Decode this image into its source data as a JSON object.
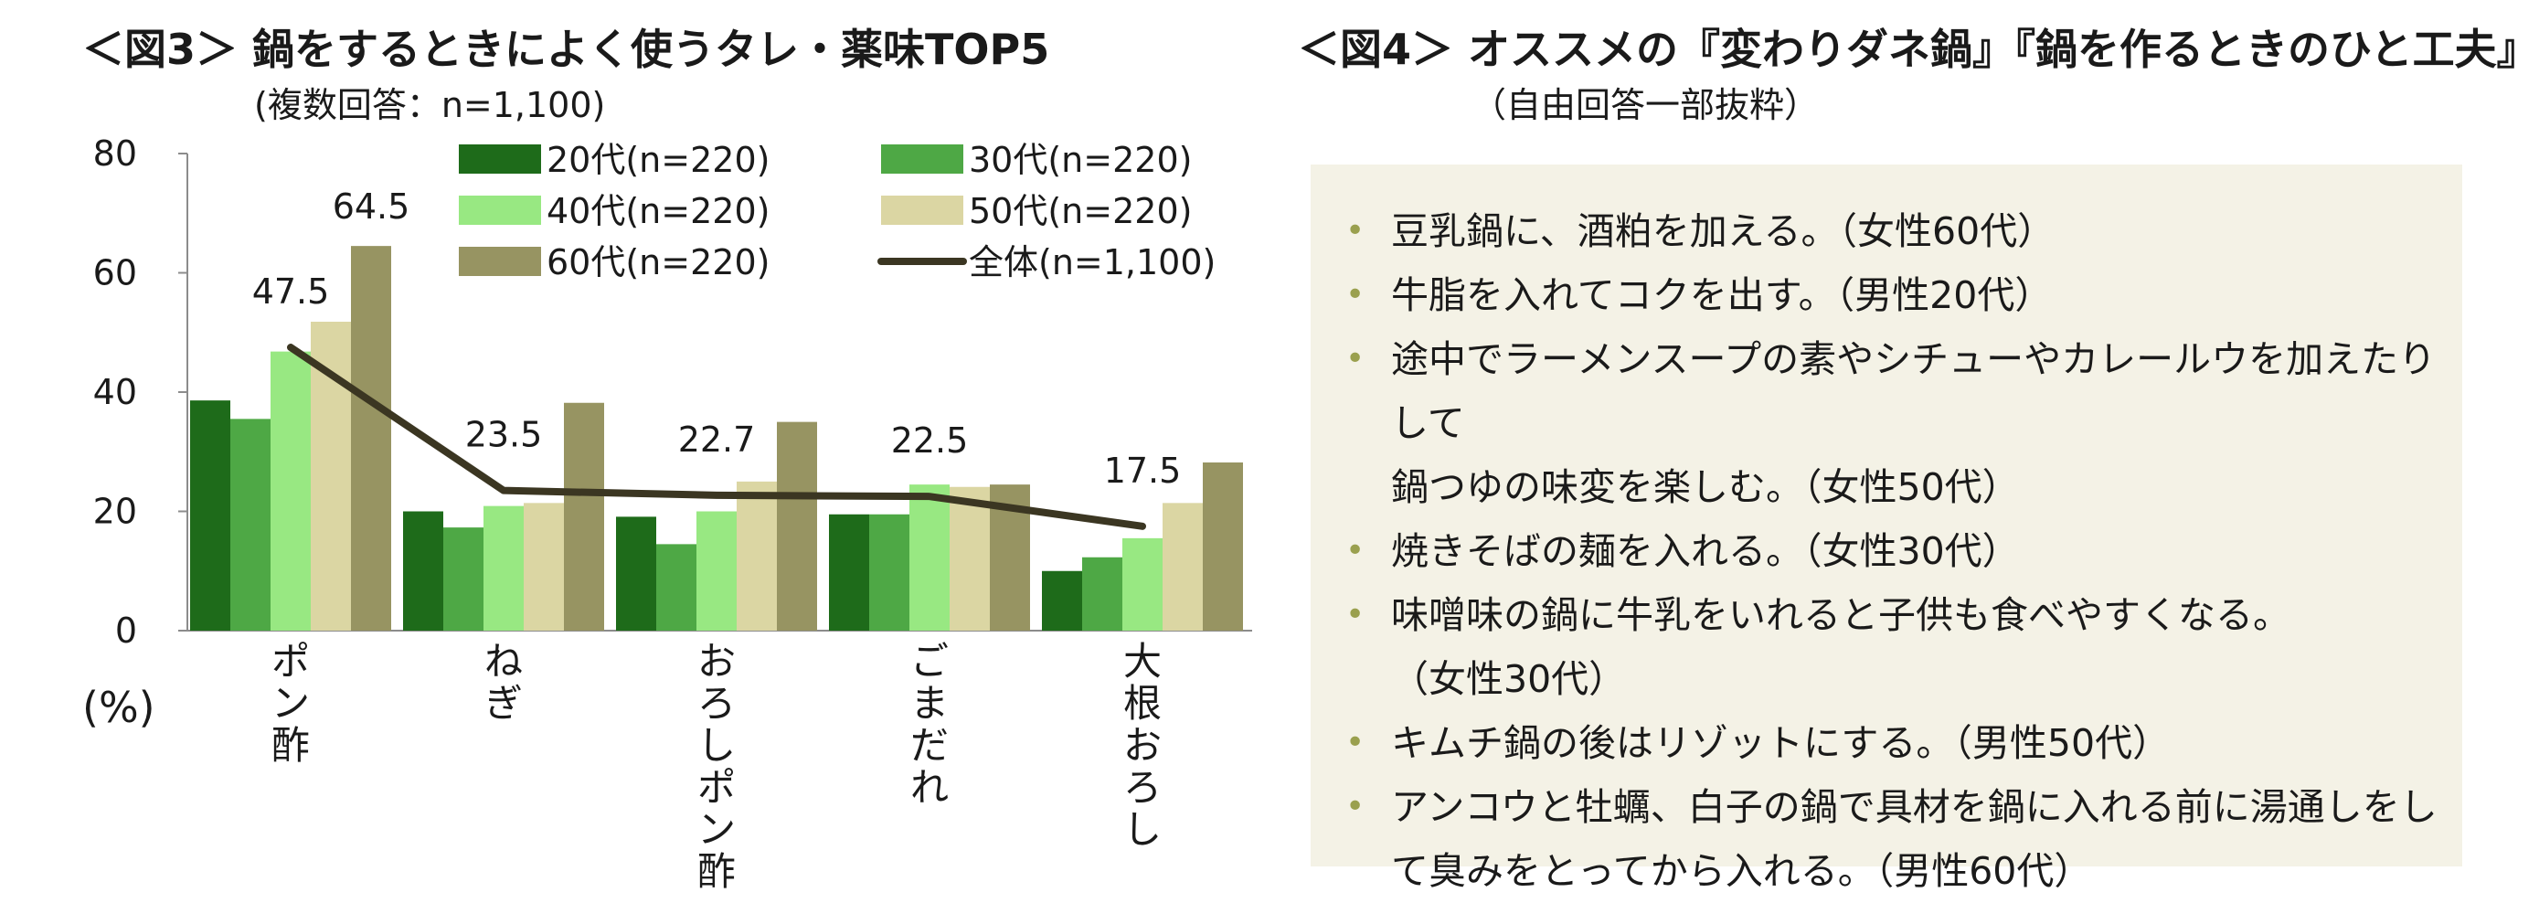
{
  "figure3": {
    "title": "＜図3＞ 鍋をするときによく使うタレ・薬味TOP5",
    "subtitle": "(複数回答：n=1,100)",
    "unit_label": "(%)"
  },
  "figure4": {
    "title": "＜図4＞ オススメの『変わりダネ鍋』『鍋を作るときのひと工夫』",
    "subtitle": "（自由回答一部抜粋）",
    "bullet_glyph": "•",
    "comments": [
      [
        "豆乳鍋に、酒粕を加える。（女性60代）"
      ],
      [
        "牛脂を入れてコクを出す。（男性20代）"
      ],
      [
        "途中でラーメンスープの素やシチューやカレールウを加えたりして",
        "鍋つゆの味変を楽しむ。（女性50代）"
      ],
      [
        "焼きそばの麺を入れる。（女性30代）"
      ],
      [
        "味噌味の鍋に牛乳をいれると子供も食べやすくなる。",
        "（女性30代）"
      ],
      [
        "キムチ鍋の後はリゾットにする。（男性50代）"
      ],
      [
        "アンコウと牡蠣、白子の鍋で具材を鍋に入れる前に湯通しをし",
        "て臭みをとってから入れる。（男性60代）"
      ]
    ]
  },
  "chart_data": {
    "type": "bar",
    "title": "＜図3＞ 鍋をするときによく使うタレ・薬味TOP5",
    "ylim": [
      0,
      80
    ],
    "yticks": [
      0,
      20,
      40,
      60,
      80
    ],
    "grid": false,
    "legend_position": "top-right",
    "categories": [
      "ポン酢",
      "ねぎ",
      "おろしポン酢",
      "ごまだれ",
      "大根おろし"
    ],
    "series": [
      {
        "name": "20代(n=220)",
        "color": "#1e6b1a",
        "values": [
          38.6,
          20.0,
          19.1,
          19.5,
          10.0
        ]
      },
      {
        "name": "30代(n=220)",
        "color": "#4ea845",
        "values": [
          35.5,
          17.3,
          14.5,
          19.5,
          12.3
        ]
      },
      {
        "name": "40代(n=220)",
        "color": "#98e882",
        "values": [
          46.8,
          20.9,
          20.0,
          24.5,
          15.5
        ]
      },
      {
        "name": "50代(n=220)",
        "color": "#dbd6a3",
        "values": [
          51.8,
          21.4,
          25.0,
          24.1,
          21.4
        ]
      },
      {
        "name": "60代(n=220)",
        "color": "#979462",
        "values": [
          64.5,
          38.2,
          35.0,
          24.5,
          28.2
        ]
      }
    ],
    "total_series": {
      "name": "全体(n=1,100)",
      "color": "#3b3622",
      "values": [
        47.5,
        23.5,
        22.7,
        22.5,
        17.5
      ],
      "labels": [
        "47.5",
        "23.5",
        "22.7",
        "22.5",
        "17.5"
      ]
    },
    "peak_label": "64.5"
  }
}
